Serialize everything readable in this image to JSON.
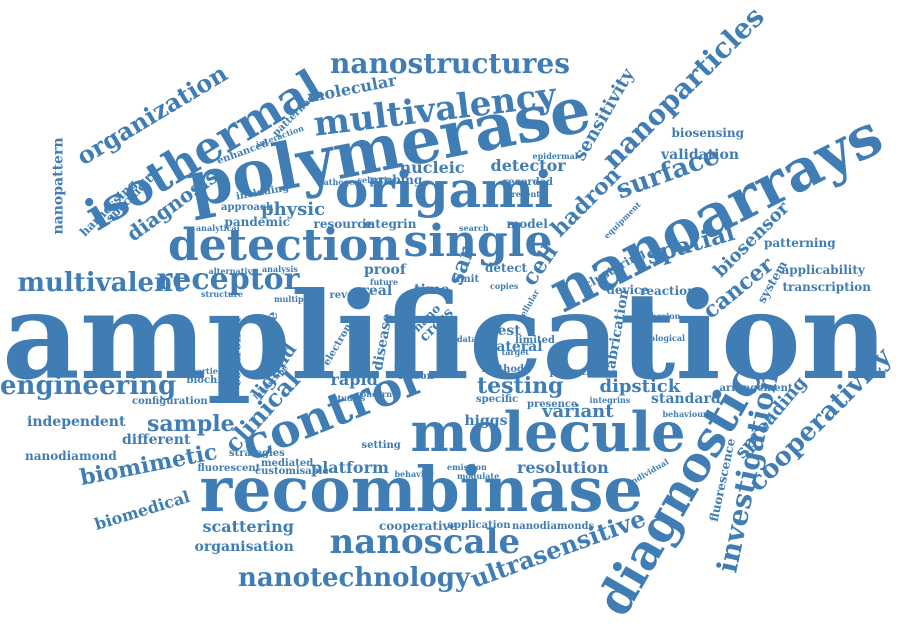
{
  "words": [
    {
      "text": "amplification",
      "size": "xl"
    },
    {
      "text": "polymerase",
      "size": "l"
    },
    {
      "text": "recombinase",
      "size": "l"
    },
    {
      "text": "molecule",
      "size": "l"
    },
    {
      "text": "nanoarrays",
      "size": "l"
    },
    {
      "text": "diagnostic",
      "size": "l"
    },
    {
      "text": "origami",
      "size": "l"
    },
    {
      "text": "detection",
      "size": "l"
    },
    {
      "text": "single",
      "size": "l"
    },
    {
      "text": "control",
      "size": "l"
    },
    {
      "text": "isothermal",
      "size": "l"
    },
    {
      "text": "multivalency",
      "size": "m"
    },
    {
      "text": "nanostructures",
      "size": "m"
    },
    {
      "text": "nanoparticles",
      "size": "m"
    },
    {
      "text": "nanoscale",
      "size": "m"
    },
    {
      "text": "nanotechnology",
      "size": "m"
    },
    {
      "text": "ultrasensitive",
      "size": "m"
    },
    {
      "text": "investigation",
      "size": "m"
    },
    {
      "text": "cooperativity",
      "size": "m"
    },
    {
      "text": "engineering",
      "size": "m"
    },
    {
      "text": "multivalent",
      "size": "m"
    },
    {
      "text": "receptor",
      "size": "m"
    },
    {
      "text": "organization",
      "size": "m"
    },
    {
      "text": "diagnosis",
      "size": "m"
    },
    {
      "text": "surface",
      "size": "m"
    },
    {
      "text": "spatial",
      "size": "m"
    },
    {
      "text": "cancer",
      "size": "m"
    },
    {
      "text": "testing",
      "size": "m"
    },
    {
      "text": "clinical",
      "size": "m"
    },
    {
      "text": "sample",
      "size": "m"
    },
    {
      "text": "biomimetic",
      "size": "m"
    },
    {
      "text": "platform",
      "size": "s"
    },
    {
      "text": "resolution",
      "size": "s"
    },
    {
      "text": "scattering",
      "size": "s"
    },
    {
      "text": "organisation",
      "size": "s"
    },
    {
      "text": "biomedical",
      "size": "s"
    },
    {
      "text": "independent",
      "size": "s"
    },
    {
      "text": "different",
      "size": "s"
    },
    {
      "text": "nanodiamond",
      "size": "xs"
    },
    {
      "text": "rapid",
      "size": "s"
    },
    {
      "text": "dipstick",
      "size": "s"
    },
    {
      "text": "variant",
      "size": "s"
    },
    {
      "text": "ligand",
      "size": "s"
    },
    {
      "text": "spreading",
      "size": "s"
    },
    {
      "text": "fluorescence",
      "size": "xs"
    },
    {
      "text": "biosensor",
      "size": "s"
    },
    {
      "text": "patterning",
      "size": "xs"
    },
    {
      "text": "applicability",
      "size": "xs"
    },
    {
      "text": "transcription",
      "size": "xs"
    },
    {
      "text": "system",
      "size": "xs"
    },
    {
      "text": "reaction",
      "size": "xs"
    },
    {
      "text": "hadron",
      "size": "s"
    },
    {
      "text": "sensitivity",
      "size": "s"
    },
    {
      "text": "fabrication",
      "size": "s"
    },
    {
      "text": "validation",
      "size": "s"
    },
    {
      "text": "biosensing",
      "size": "s"
    },
    {
      "text": "nanopattern",
      "size": "s"
    },
    {
      "text": "nucleic",
      "size": "s"
    },
    {
      "text": "detector",
      "size": "s"
    },
    {
      "text": "physic",
      "size": "s"
    },
    {
      "text": "molecular",
      "size": "s"
    },
    {
      "text": "resource",
      "size": "xs"
    },
    {
      "text": "integrin",
      "size": "xs"
    },
    {
      "text": "model",
      "size": "xs"
    },
    {
      "text": "pandemic",
      "size": "xs"
    },
    {
      "text": "approach",
      "size": "xs"
    },
    {
      "text": "harnessing",
      "size": "xs"
    },
    {
      "text": "specificity",
      "size": "xs"
    },
    {
      "text": "enhanced",
      "size": "xxs"
    },
    {
      "text": "interaction",
      "size": "xxs"
    },
    {
      "text": "patterned",
      "size": "xxs"
    },
    {
      "text": "including",
      "size": "xxs"
    },
    {
      "text": "analytical",
      "size": "xxs"
    },
    {
      "text": "pathogen",
      "size": "xxs"
    },
    {
      "text": "probing",
      "size": "xxs"
    },
    {
      "text": "selective",
      "size": "xxs"
    },
    {
      "text": "epidermal",
      "size": "xxs"
    },
    {
      "text": "recorded",
      "size": "xxs"
    },
    {
      "text": "present",
      "size": "xxs"
    },
    {
      "text": "search",
      "size": "xxs"
    },
    {
      "text": "equipment",
      "size": "xxs"
    },
    {
      "text": "alternative",
      "size": "xxs"
    },
    {
      "text": "structure",
      "size": "xxs"
    },
    {
      "text": "analysis",
      "size": "xxs"
    },
    {
      "text": "multiple",
      "size": "xxs"
    },
    {
      "text": "proof",
      "size": "xs"
    },
    {
      "text": "real",
      "size": "xs"
    },
    {
      "text": "time",
      "size": "xs"
    },
    {
      "text": "future",
      "size": "xxs"
    },
    {
      "text": "reverse",
      "size": "xxs"
    },
    {
      "text": "limit",
      "size": "xxs"
    },
    {
      "text": "detect",
      "size": "xs"
    },
    {
      "text": "sar",
      "size": "s"
    },
    {
      "text": "cell",
      "size": "s"
    },
    {
      "text": "device",
      "size": "xs"
    },
    {
      "text": "clustering",
      "size": "xs"
    },
    {
      "text": "copies",
      "size": "xxs"
    },
    {
      "text": "cellular",
      "size": "xxs"
    },
    {
      "text": "reusable",
      "size": "xs"
    },
    {
      "text": "controlled",
      "size": "xs"
    },
    {
      "text": "electron",
      "size": "xxs"
    },
    {
      "text": "disease",
      "size": "xs"
    },
    {
      "text": "cross",
      "size": "xs"
    },
    {
      "text": "nano",
      "size": "xs"
    },
    {
      "text": "test",
      "size": "xs"
    },
    {
      "text": "limited",
      "size": "xxs"
    },
    {
      "text": "lateral",
      "size": "xs"
    },
    {
      "text": "data",
      "size": "xxs"
    },
    {
      "text": "target",
      "size": "xxs"
    },
    {
      "text": "biochips",
      "size": "xxs"
    },
    {
      "text": "landscape",
      "size": "xxs"
    },
    {
      "text": "properties",
      "size": "xxs"
    },
    {
      "text": "configuration",
      "size": "xxs"
    },
    {
      "text": "lesson",
      "size": "xxs"
    },
    {
      "text": "potential",
      "size": "xxs"
    },
    {
      "text": "method",
      "size": "xxs"
    },
    {
      "text": "higgs",
      "size": "xs"
    },
    {
      "text": "specific",
      "size": "xxs"
    },
    {
      "text": "presence",
      "size": "xxs"
    },
    {
      "text": "standard",
      "size": "xs"
    },
    {
      "text": "behaviour",
      "size": "xxs"
    },
    {
      "text": "integrins",
      "size": "xxs"
    },
    {
      "text": "arrangement",
      "size": "xxs"
    },
    {
      "text": "adhesion",
      "size": "xxs"
    },
    {
      "text": "biological",
      "size": "xxs"
    },
    {
      "text": "setting",
      "size": "xxs"
    },
    {
      "text": "strategies",
      "size": "xxs"
    },
    {
      "text": "mediated",
      "size": "xxs"
    },
    {
      "text": "customisable",
      "size": "xxs"
    },
    {
      "text": "fluorescent",
      "size": "xxs"
    },
    {
      "text": "behavior",
      "size": "xxs"
    },
    {
      "text": "emission",
      "size": "xxs"
    },
    {
      "text": "modulate",
      "size": "xxs"
    },
    {
      "text": "cooperative",
      "size": "xxs"
    },
    {
      "text": "application",
      "size": "xxs"
    },
    {
      "text": "nanodiamonds",
      "size": "xxs"
    },
    {
      "text": "studies",
      "size": "xxs"
    },
    {
      "text": "concern",
      "size": "xxs"
    },
    {
      "text": "individual",
      "size": "xxs"
    }
  ]
}
